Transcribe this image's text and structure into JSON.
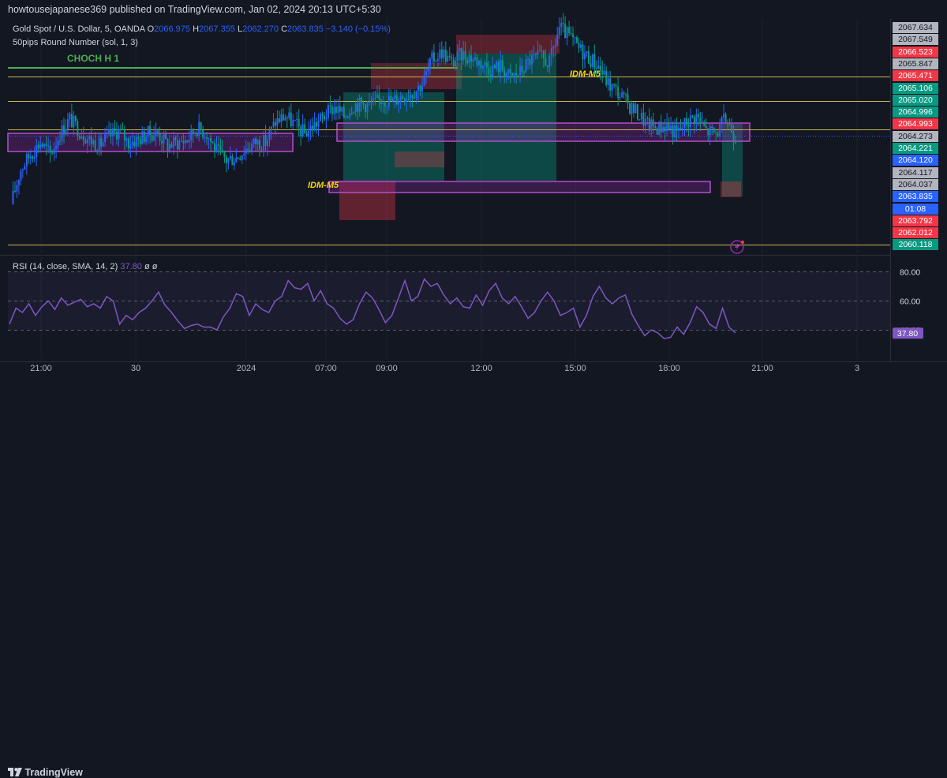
{
  "header": {
    "publisher": "howtousejapanese369 published on TradingView.com, Jan 02, 2024 20:13 UTC+5:30"
  },
  "legend": {
    "symbol": "Gold Spot / U.S. Dollar, 5, OANDA",
    "open_label": "O",
    "open": "2066.975",
    "high_label": "H",
    "high": "2067.355",
    "low_label": "L",
    "low": "2062.270",
    "close_label": "C",
    "close": "2063.835",
    "change": "−3.140 (−0.15%)",
    "indicator": "50pips Round Number (sol, 1, 3)"
  },
  "annotations": {
    "choch": "CHOCH H 1",
    "idm_left": "IDM-M5",
    "idm_right": "IDM-M5"
  },
  "rsi": {
    "label": "RSI (14, close, SMA, 14, 2)",
    "value": "37.80",
    "extra": "ø ø",
    "levels": [
      "80.00",
      "60.00",
      "40.00"
    ]
  },
  "price_axis": [
    {
      "text": "2067.634",
      "color": "#b2b5be",
      "fg": "#131722"
    },
    {
      "text": "2067.549",
      "color": "#b2b5be",
      "fg": "#131722"
    },
    {
      "text": "2066.523",
      "color": "#f23645",
      "fg": "#ffffff"
    },
    {
      "text": "2065.847",
      "color": "#b2b5be",
      "fg": "#131722"
    },
    {
      "text": "2065.471",
      "color": "#f23645",
      "fg": "#ffffff"
    },
    {
      "text": "2065.106",
      "color": "#089981",
      "fg": "#ffffff"
    },
    {
      "text": "2065.020",
      "color": "#089981",
      "fg": "#ffffff"
    },
    {
      "text": "2064.996",
      "color": "#089981",
      "fg": "#ffffff"
    },
    {
      "text": "2064.993",
      "color": "#f23645",
      "fg": "#ffffff"
    },
    {
      "text": "2064.273",
      "color": "#b2b5be",
      "fg": "#131722"
    },
    {
      "text": "2064.221",
      "color": "#089981",
      "fg": "#ffffff"
    },
    {
      "text": "2064.120",
      "color": "#2962ff",
      "fg": "#ffffff"
    },
    {
      "text": "2064.117",
      "color": "#b2b5be",
      "fg": "#131722"
    },
    {
      "text": "2064.037",
      "color": "#b2b5be",
      "fg": "#131722"
    },
    {
      "text": "2063.835",
      "color": "#2962ff",
      "fg": "#ffffff"
    },
    {
      "text": "01:08",
      "color": "#2962ff",
      "fg": "#ffffff"
    },
    {
      "text": "2063.792",
      "color": "#f23645",
      "fg": "#ffffff"
    },
    {
      "text": "2062.012",
      "color": "#f23645",
      "fg": "#ffffff"
    },
    {
      "text": "2060.118",
      "color": "#089981",
      "fg": "#ffffff"
    }
  ],
  "time_axis": [
    "21:00",
    "30",
    "2024",
    "07:00",
    "09:00",
    "12:00",
    "15:00",
    "18:00",
    "21:00",
    "3"
  ],
  "footer": {
    "brand": "TradingView"
  },
  "colors": {
    "background": "#131722",
    "candle_up": "#2962ff",
    "candle_down": "#089981",
    "rsi_line": "#7e57c2",
    "level_line": "#c9b74e",
    "ob_zone": "#9c27b0",
    "red_zone": "#f23645",
    "green_zone": "#089981"
  },
  "chart_data": [
    {
      "type": "line",
      "title": "Gold Spot / U.S. Dollar, 5, OANDA",
      "x_ticks": [
        "21:00",
        "30",
        "2024",
        "07:00",
        "09:00",
        "12:00",
        "15:00",
        "18:00",
        "21:00",
        "3"
      ],
      "series": [
        {
          "name": "XAUUSD",
          "values": [
            2061.5,
            2062.7,
            2063.2,
            2063.6,
            2063.2,
            2063.9,
            2064.4,
            2064.0,
            2063.7,
            2063.5,
            2063.8,
            2064.0,
            2063.6,
            2063.7,
            2063.9,
            2063.9,
            2063.5,
            2063.6,
            2063.7,
            2064.1,
            2063.9,
            2063.3,
            2063.0,
            2063.1,
            2063.4,
            2063.6,
            2063.6,
            2064.3,
            2064.5,
            2064.2,
            2063.9,
            2064.2,
            2064.5,
            2064.8,
            2064.5,
            2064.9,
            2064.9,
            2064.9,
            2065.1,
            2065.0,
            2065.2,
            2065.3,
            2065.6,
            2066.4,
            2066.7,
            2066.3,
            2066.6,
            2066.5,
            2066.3,
            2066.1,
            2066.2,
            2065.8,
            2066.0,
            2066.4,
            2066.5,
            2066.3,
            2067.5,
            2067.2,
            2066.8,
            2066.5,
            2066.2,
            2065.6,
            2065.3,
            2064.9,
            2064.6,
            2064.2,
            2064.1,
            2064.2,
            2063.9,
            2064.3,
            2064.5,
            2064.0,
            2063.9,
            2064.4,
            2063.8
          ]
        }
      ],
      "ylim": [
        2059.8,
        2067.8
      ],
      "levels": [
        2065.847,
        2064.996,
        2064.037,
        2060.118
      ],
      "current": 2063.835,
      "annotations": [
        "CHOCH H 1",
        "IDM-M5",
        "IDM-M5"
      ]
    },
    {
      "type": "line",
      "title": "RSI (14, close, SMA, 14, 2)",
      "series": [
        {
          "name": "RSI",
          "values": [
            44,
            55,
            52,
            58,
            50,
            56,
            60,
            54,
            62,
            57,
            59,
            61,
            56,
            58,
            55,
            63,
            60,
            44,
            50,
            47,
            52,
            55,
            60,
            66,
            57,
            52,
            46,
            41,
            43,
            44,
            42,
            42,
            40,
            49,
            55,
            65,
            63,
            50,
            58,
            54,
            52,
            60,
            63,
            74,
            69,
            68,
            72,
            60,
            67,
            58,
            55,
            48,
            44,
            47,
            58,
            66,
            62,
            54,
            45,
            50,
            62,
            74,
            60,
            63,
            75,
            70,
            72,
            64,
            58,
            62,
            56,
            55,
            64,
            57,
            67,
            72,
            62,
            58,
            63,
            56,
            48,
            52,
            60,
            66,
            60,
            50,
            52,
            55,
            42,
            50,
            63,
            70,
            62,
            58,
            62,
            64,
            51,
            43,
            36,
            40,
            38,
            34,
            35,
            42,
            37,
            45,
            56,
            52,
            44,
            41,
            55,
            42,
            38
          ]
        }
      ],
      "ylim": [
        20,
        90
      ],
      "levels": [
        80,
        60,
        40
      ],
      "current": 37.8
    }
  ]
}
